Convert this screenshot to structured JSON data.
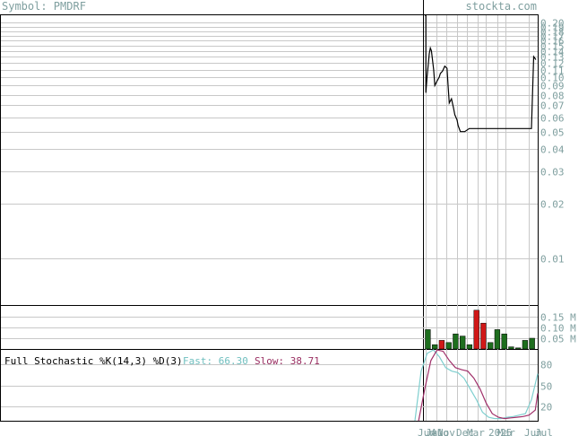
{
  "header": {
    "symbol_text": "Symbol: PMDRF",
    "site_text": "stockta.com"
  },
  "colors": {
    "grid": "#c8c8c8",
    "frame": "#000000",
    "price_line": "#000000",
    "label": "#7f9f9f",
    "vol_up": "#1e6e1e",
    "vol_down": "#d01818",
    "fast_line": "#7fcfcf",
    "slow_line": "#a0306a",
    "fast_text": "#6fbfbf",
    "slow_text": "#9a2f62"
  },
  "chart_data": [
    {
      "type": "line",
      "name": "price",
      "y_scale": "log",
      "ylim": [
        0.0055,
        0.22
      ],
      "y_tick_labels": [
        "0.20",
        "0.19",
        "0.18",
        "0.17",
        "0.16",
        "0.15",
        "0.14",
        "0.13",
        "0.12",
        "0.11",
        "0.10",
        "0.09",
        "0.08",
        "0.07",
        "0.06",
        "0.05",
        "0.04",
        "0.03",
        "0.02",
        "0.01"
      ],
      "x": [
        0,
        1,
        1,
        2,
        3,
        4,
        5,
        6,
        8,
        9,
        11,
        13,
        14,
        16,
        18,
        20,
        21,
        22,
        24,
        26,
        27,
        29,
        30,
        32,
        34,
        36,
        40,
        44,
        46,
        48,
        50,
        52,
        54,
        56,
        58,
        60,
        62,
        64,
        66,
        68,
        70,
        72,
        74,
        76,
        78,
        80,
        82,
        84,
        86,
        88,
        90,
        92,
        94,
        96,
        98,
        100
      ],
      "values": [
        0.22,
        0.22,
        0.082,
        0.1,
        0.115,
        0.135,
        0.145,
        0.14,
        0.11,
        0.09,
        0.095,
        0.1,
        0.105,
        0.108,
        0.115,
        0.112,
        0.09,
        0.072,
        0.076,
        0.067,
        0.062,
        0.058,
        0.054,
        0.05,
        0.05,
        0.05,
        0.052,
        0.052,
        0.052,
        0.052,
        0.052,
        0.052,
        0.052,
        0.052,
        0.052,
        0.052,
        0.052,
        0.052,
        0.052,
        0.052,
        0.052,
        0.052,
        0.052,
        0.052,
        0.052,
        0.052,
        0.052,
        0.052,
        0.052,
        0.052,
        0.052,
        0.052,
        0.052,
        0.052,
        0.13,
        0.125
      ]
    },
    {
      "type": "bar",
      "name": "volume",
      "y_tick_labels": [
        "0.15 M",
        "0.10 M",
        "0.05 M"
      ],
      "ylim": [
        0,
        0.2
      ],
      "categories": [
        "1",
        "2",
        "3",
        "4",
        "5",
        "6",
        "7",
        "8",
        "9",
        "10",
        "11",
        "12",
        "13",
        "14",
        "15",
        "16"
      ],
      "values": [
        0.09,
        0.02,
        0.04,
        0.03,
        0.07,
        0.06,
        0.02,
        0.18,
        0.12,
        0.03,
        0.09,
        0.07,
        0.01,
        0.005,
        0.04,
        0.05
      ],
      "direction": [
        "up",
        "up",
        "down",
        "up",
        "up",
        "up",
        "up",
        "down",
        "down",
        "up",
        "up",
        "up",
        "up",
        "up",
        "up",
        "up"
      ]
    },
    {
      "type": "line",
      "name": "full-stochastic",
      "title": "Full Stochastic %K(14,3) %D(3)",
      "fast_label": "Fast: 66.30",
      "slow_label": "Slow: 38.71",
      "y_tick_labels": [
        "80",
        "50",
        "20"
      ],
      "ylim": [
        0,
        100
      ],
      "x": [
        0,
        5,
        10,
        15,
        20,
        25,
        30,
        35,
        40,
        45,
        50,
        55,
        60,
        65,
        70,
        75,
        80,
        85,
        90,
        95,
        100
      ],
      "fast": [
        0,
        70,
        95,
        100,
        90,
        75,
        70,
        68,
        60,
        45,
        30,
        12,
        5,
        3,
        3,
        5,
        6,
        8,
        10,
        30,
        66.3
      ],
      "slow": [
        0,
        45,
        85,
        100,
        98,
        85,
        75,
        72,
        70,
        60,
        45,
        25,
        10,
        5,
        3,
        4,
        5,
        6,
        8,
        15,
        38.71
      ]
    }
  ],
  "x_axis": {
    "labels": [
      "Jun",
      "Jul",
      "Aug",
      "Nov",
      "Dec",
      "Mar",
      "2025",
      "Mar",
      "Jun",
      "Jul"
    ]
  }
}
